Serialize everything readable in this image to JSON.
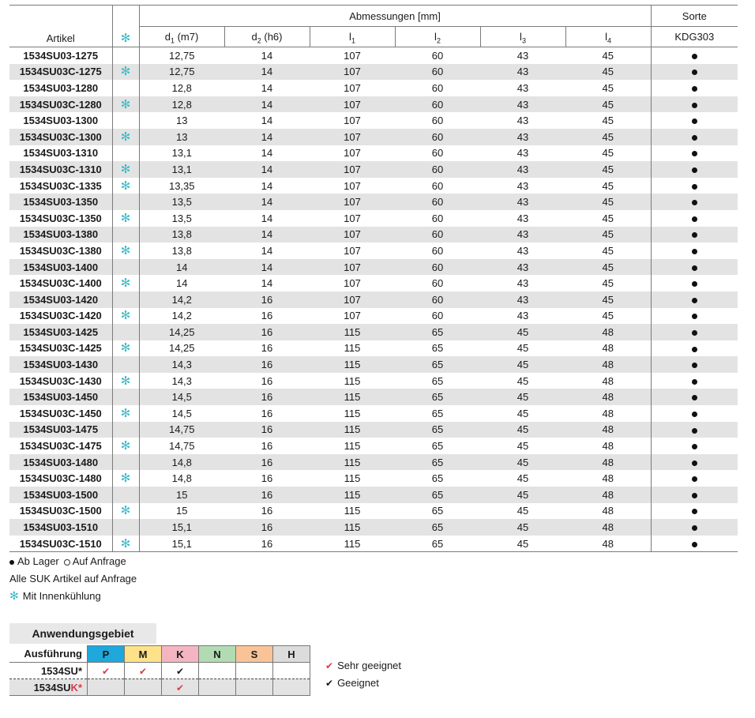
{
  "header": {
    "artikel": "Artikel",
    "abmessungen": "Abmessungen [mm]",
    "sorte": "Sorte",
    "kdg": "KDG303",
    "cols": [
      {
        "base": "d",
        "sub": "1",
        "suffix": " (m7)"
      },
      {
        "base": "d",
        "sub": "2",
        "suffix": " (h6)"
      },
      {
        "base": "l",
        "sub": "1",
        "suffix": ""
      },
      {
        "base": "l",
        "sub": "2",
        "suffix": ""
      },
      {
        "base": "l",
        "sub": "3",
        "suffix": ""
      },
      {
        "base": "l",
        "sub": "4",
        "suffix": ""
      }
    ]
  },
  "icons": {
    "coolant": "snowflake-icon",
    "stock": "filled-dot-icon",
    "request": "open-circle-icon"
  },
  "colors": {
    "coolant": "#3fb9c7",
    "P": "#1ea8dc",
    "M": "#fde28a",
    "K": "#f4b5c3",
    "N": "#b2dbb3",
    "S": "#f8c497",
    "H": "#dcdcdc",
    "check_red": "#d93a4a"
  },
  "rows": [
    {
      "art": "1534SU03-1275",
      "cool": false,
      "d1": "12,75",
      "d2": "14",
      "l1": "107",
      "l2": "60",
      "l3": "43",
      "l4": "45",
      "kdg": "stock"
    },
    {
      "art": "1534SU03C-1275",
      "cool": true,
      "d1": "12,75",
      "d2": "14",
      "l1": "107",
      "l2": "60",
      "l3": "43",
      "l4": "45",
      "kdg": "stock"
    },
    {
      "art": "1534SU03-1280",
      "cool": false,
      "d1": "12,8",
      "d2": "14",
      "l1": "107",
      "l2": "60",
      "l3": "43",
      "l4": "45",
      "kdg": "stock"
    },
    {
      "art": "1534SU03C-1280",
      "cool": true,
      "d1": "12,8",
      "d2": "14",
      "l1": "107",
      "l2": "60",
      "l3": "43",
      "l4": "45",
      "kdg": "stock"
    },
    {
      "art": "1534SU03-1300",
      "cool": false,
      "d1": "13",
      "d2": "14",
      "l1": "107",
      "l2": "60",
      "l3": "43",
      "l4": "45",
      "kdg": "stock"
    },
    {
      "art": "1534SU03C-1300",
      "cool": true,
      "d1": "13",
      "d2": "14",
      "l1": "107",
      "l2": "60",
      "l3": "43",
      "l4": "45",
      "kdg": "stock"
    },
    {
      "art": "1534SU03-1310",
      "cool": false,
      "d1": "13,1",
      "d2": "14",
      "l1": "107",
      "l2": "60",
      "l3": "43",
      "l4": "45",
      "kdg": "stock"
    },
    {
      "art": "1534SU03C-1310",
      "cool": true,
      "d1": "13,1",
      "d2": "14",
      "l1": "107",
      "l2": "60",
      "l3": "43",
      "l4": "45",
      "kdg": "stock"
    },
    {
      "art": "1534SU03C-1335",
      "cool": true,
      "d1": "13,35",
      "d2": "14",
      "l1": "107",
      "l2": "60",
      "l3": "43",
      "l4": "45",
      "kdg": "stock"
    },
    {
      "art": "1534SU03-1350",
      "cool": false,
      "d1": "13,5",
      "d2": "14",
      "l1": "107",
      "l2": "60",
      "l3": "43",
      "l4": "45",
      "kdg": "stock"
    },
    {
      "art": "1534SU03C-1350",
      "cool": true,
      "d1": "13,5",
      "d2": "14",
      "l1": "107",
      "l2": "60",
      "l3": "43",
      "l4": "45",
      "kdg": "stock"
    },
    {
      "art": "1534SU03-1380",
      "cool": false,
      "d1": "13,8",
      "d2": "14",
      "l1": "107",
      "l2": "60",
      "l3": "43",
      "l4": "45",
      "kdg": "stock"
    },
    {
      "art": "1534SU03C-1380",
      "cool": true,
      "d1": "13,8",
      "d2": "14",
      "l1": "107",
      "l2": "60",
      "l3": "43",
      "l4": "45",
      "kdg": "stock"
    },
    {
      "art": "1534SU03-1400",
      "cool": false,
      "d1": "14",
      "d2": "14",
      "l1": "107",
      "l2": "60",
      "l3": "43",
      "l4": "45",
      "kdg": "stock"
    },
    {
      "art": "1534SU03C-1400",
      "cool": true,
      "d1": "14",
      "d2": "14",
      "l1": "107",
      "l2": "60",
      "l3": "43",
      "l4": "45",
      "kdg": "stock"
    },
    {
      "art": "1534SU03-1420",
      "cool": false,
      "d1": "14,2",
      "d2": "16",
      "l1": "107",
      "l2": "60",
      "l3": "43",
      "l4": "45",
      "kdg": "stock"
    },
    {
      "art": "1534SU03C-1420",
      "cool": true,
      "d1": "14,2",
      "d2": "16",
      "l1": "107",
      "l2": "60",
      "l3": "43",
      "l4": "45",
      "kdg": "stock"
    },
    {
      "art": "1534SU03-1425",
      "cool": false,
      "d1": "14,25",
      "d2": "16",
      "l1": "115",
      "l2": "65",
      "l3": "45",
      "l4": "48",
      "kdg": "stock"
    },
    {
      "art": "1534SU03C-1425",
      "cool": true,
      "d1": "14,25",
      "d2": "16",
      "l1": "115",
      "l2": "65",
      "l3": "45",
      "l4": "48",
      "kdg": "stock"
    },
    {
      "art": "1534SU03-1430",
      "cool": false,
      "d1": "14,3",
      "d2": "16",
      "l1": "115",
      "l2": "65",
      "l3": "45",
      "l4": "48",
      "kdg": "stock"
    },
    {
      "art": "1534SU03C-1430",
      "cool": true,
      "d1": "14,3",
      "d2": "16",
      "l1": "115",
      "l2": "65",
      "l3": "45",
      "l4": "48",
      "kdg": "stock"
    },
    {
      "art": "1534SU03-1450",
      "cool": false,
      "d1": "14,5",
      "d2": "16",
      "l1": "115",
      "l2": "65",
      "l3": "45",
      "l4": "48",
      "kdg": "stock"
    },
    {
      "art": "1534SU03C-1450",
      "cool": true,
      "d1": "14,5",
      "d2": "16",
      "l1": "115",
      "l2": "65",
      "l3": "45",
      "l4": "48",
      "kdg": "stock"
    },
    {
      "art": "1534SU03-1475",
      "cool": false,
      "d1": "14,75",
      "d2": "16",
      "l1": "115",
      "l2": "65",
      "l3": "45",
      "l4": "48",
      "kdg": "stock"
    },
    {
      "art": "1534SU03C-1475",
      "cool": true,
      "d1": "14,75",
      "d2": "16",
      "l1": "115",
      "l2": "65",
      "l3": "45",
      "l4": "48",
      "kdg": "stock"
    },
    {
      "art": "1534SU03-1480",
      "cool": false,
      "d1": "14,8",
      "d2": "16",
      "l1": "115",
      "l2": "65",
      "l3": "45",
      "l4": "48",
      "kdg": "stock"
    },
    {
      "art": "1534SU03C-1480",
      "cool": true,
      "d1": "14,8",
      "d2": "16",
      "l1": "115",
      "l2": "65",
      "l3": "45",
      "l4": "48",
      "kdg": "stock"
    },
    {
      "art": "1534SU03-1500",
      "cool": false,
      "d1": "15",
      "d2": "16",
      "l1": "115",
      "l2": "65",
      "l3": "45",
      "l4": "48",
      "kdg": "stock"
    },
    {
      "art": "1534SU03C-1500",
      "cool": true,
      "d1": "15",
      "d2": "16",
      "l1": "115",
      "l2": "65",
      "l3": "45",
      "l4": "48",
      "kdg": "stock"
    },
    {
      "art": "1534SU03-1510",
      "cool": false,
      "d1": "15,1",
      "d2": "16",
      "l1": "115",
      "l2": "65",
      "l3": "45",
      "l4": "48",
      "kdg": "stock"
    },
    {
      "art": "1534SU03C-1510",
      "cool": true,
      "d1": "15,1",
      "d2": "16",
      "l1": "115",
      "l2": "65",
      "l3": "45",
      "l4": "48",
      "kdg": "stock"
    }
  ],
  "legend": {
    "ab_lager": "Ab Lager",
    "auf_anfrage": "Auf Anfrage",
    "suk": "Alle SUK Artikel auf Anfrage",
    "innen": "Mit Innenkühlung"
  },
  "app": {
    "title": "Anwendungsgebiet",
    "ausfuehrung": "Ausführung",
    "materials": [
      "P",
      "M",
      "K",
      "N",
      "S",
      "H"
    ],
    "rows": [
      {
        "prefix": "1534SU",
        "red": "",
        "star": "*",
        "checks": [
          "red",
          "red",
          "black",
          "",
          "",
          ""
        ]
      },
      {
        "prefix": "1534SU",
        "red": "K",
        "star": "*",
        "checks": [
          "",
          "",
          "red",
          "",
          "",
          ""
        ]
      }
    ],
    "sehr": "Sehr geeignet",
    "geeignet": "Geeignet"
  }
}
